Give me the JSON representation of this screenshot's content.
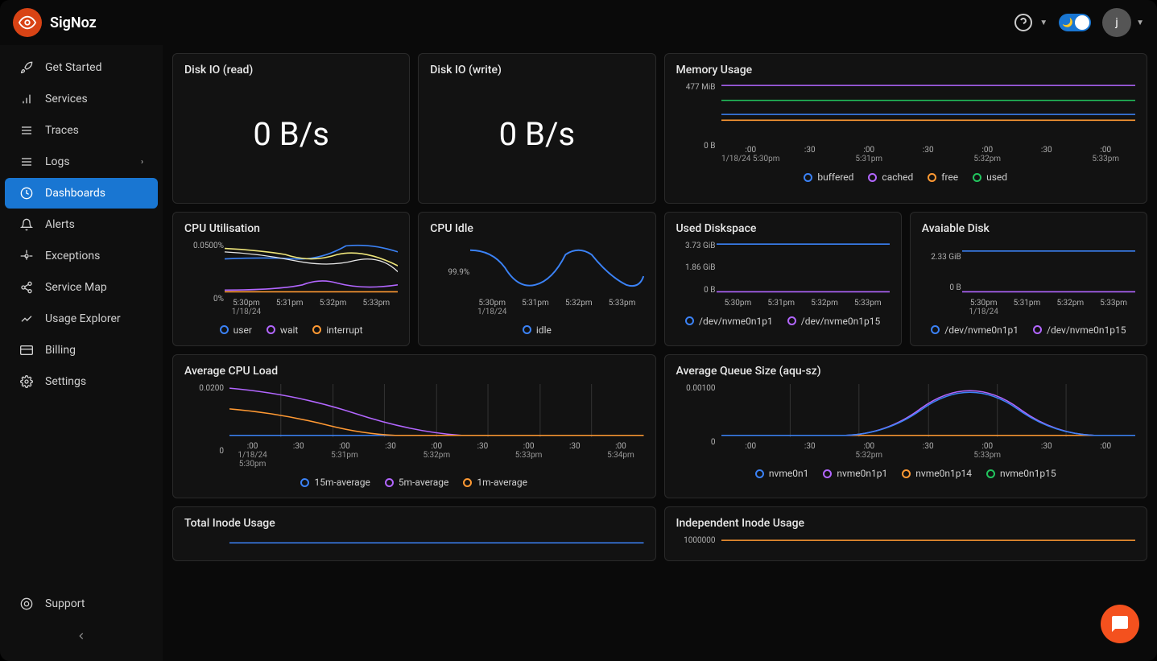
{
  "brand": "SigNoz",
  "avatar_initial": "j",
  "sidebar": {
    "items": [
      {
        "label": "Get Started",
        "icon": "rocket"
      },
      {
        "label": "Services",
        "icon": "bar-chart"
      },
      {
        "label": "Traces",
        "icon": "menu"
      },
      {
        "label": "Logs",
        "icon": "list",
        "expandable": true
      },
      {
        "label": "Dashboards",
        "icon": "gauge",
        "active": true
      },
      {
        "label": "Alerts",
        "icon": "bell"
      },
      {
        "label": "Exceptions",
        "icon": "cog"
      },
      {
        "label": "Service Map",
        "icon": "share"
      },
      {
        "label": "Usage Explorer",
        "icon": "line-chart"
      },
      {
        "label": "Billing",
        "icon": "card"
      },
      {
        "label": "Settings",
        "icon": "gear"
      }
    ],
    "support_label": "Support"
  },
  "panels": {
    "disk_read": {
      "title": "Disk IO (read)",
      "value": "0 B/s"
    },
    "disk_write": {
      "title": "Disk IO (write)",
      "value": "0 B/s"
    },
    "memory": {
      "title": "Memory Usage",
      "type": "line",
      "ylabels": [
        "477 MiB",
        "0 B"
      ],
      "xticks": [
        {
          "t": ":00",
          "sub": "1/18/24 5:30pm"
        },
        {
          "t": ":30"
        },
        {
          "t": ":00",
          "sub": "5:31pm"
        },
        {
          "t": ":30"
        },
        {
          "t": ":00",
          "sub": "5:32pm"
        },
        {
          "t": ":30"
        },
        {
          "t": ":00",
          "sub": "5:33pm"
        }
      ],
      "series": [
        {
          "color": "#3b82f6",
          "y": 0.55,
          "name": "buffered"
        },
        {
          "color": "#b266ff",
          "y": 0.05,
          "name": "cached"
        },
        {
          "color": "#ff9933",
          "y": 0.64,
          "name": "free"
        },
        {
          "color": "#22c55e",
          "y": 0.3,
          "name": "used"
        }
      ],
      "legend": [
        {
          "label": "buffered",
          "color": "#3b82f6"
        },
        {
          "label": "cached",
          "color": "#b266ff"
        },
        {
          "label": "free",
          "color": "#ff9933"
        },
        {
          "label": "used",
          "color": "#22c55e"
        }
      ]
    },
    "cpu_util": {
      "title": "CPU Utilisation",
      "ylabels": [
        "0.0500%",
        "0%"
      ],
      "xticks": [
        {
          "t": "5:30pm",
          "sub": "1/18/24"
        },
        {
          "t": "5:31pm"
        },
        {
          "t": "5:32pm"
        },
        {
          "t": "5:33pm"
        }
      ],
      "legend": [
        {
          "label": "user",
          "color": "#3b82f6"
        },
        {
          "label": "wait",
          "color": "#b266ff"
        },
        {
          "label": "interrupt",
          "color": "#ff9933"
        }
      ]
    },
    "cpu_idle": {
      "title": "CPU Idle",
      "ylabels": [
        "99.9%",
        ""
      ],
      "xticks": [
        {
          "t": "5:30pm",
          "sub": "1/18/24"
        },
        {
          "t": "5:31pm"
        },
        {
          "t": "5:32pm"
        },
        {
          "t": "5:33pm"
        }
      ],
      "legend": [
        {
          "label": "idle",
          "color": "#3b82f6"
        }
      ]
    },
    "used_disk": {
      "title": "Used Diskspace",
      "ylabels": [
        "3.73 GiB",
        "1.86 GiB",
        "0 B"
      ],
      "xticks": [
        {
          "t": "5:30pm"
        },
        {
          "t": "5:31pm"
        },
        {
          "t": "5:32pm"
        },
        {
          "t": "5:33pm"
        }
      ],
      "series": [
        {
          "color": "#3b82f6",
          "y": 0.05
        },
        {
          "color": "#b266ff",
          "y": 0.97
        }
      ],
      "legend": [
        {
          "label": "/dev/nvme0n1p1",
          "color": "#3b82f6"
        },
        {
          "label": "/dev/nvme0n1p15",
          "color": "#b266ff"
        }
      ]
    },
    "avail_disk": {
      "title": "Avaiable Disk",
      "ylabels": [
        "2.33 GiB",
        "0 B"
      ],
      "xticks": [
        {
          "t": "5:30pm",
          "sub": "1/18/24"
        },
        {
          "t": "5:31pm"
        },
        {
          "t": "5:32pm"
        },
        {
          "t": "5:33pm"
        }
      ],
      "series": [
        {
          "color": "#3b82f6",
          "y": 0.18
        },
        {
          "color": "#b266ff",
          "y": 0.97
        }
      ],
      "legend": [
        {
          "label": "/dev/nvme0n1p1",
          "color": "#3b82f6"
        },
        {
          "label": "/dev/nvme0n1p15",
          "color": "#b266ff"
        }
      ]
    },
    "cpu_load": {
      "title": "Average CPU Load",
      "ylabels": [
        "0.0200",
        "0"
      ],
      "xticks": [
        {
          "t": ":00",
          "sub": "1/18/24 5:30pm"
        },
        {
          "t": ":30"
        },
        {
          "t": ":00",
          "sub": "5:31pm"
        },
        {
          "t": ":30"
        },
        {
          "t": ":00",
          "sub": "5:32pm"
        },
        {
          "t": ":30"
        },
        {
          "t": ":00",
          "sub": "5:33pm"
        },
        {
          "t": ":30"
        },
        {
          "t": ":00",
          "sub": "5:34pm"
        }
      ],
      "legend": [
        {
          "label": "15m-average",
          "color": "#3b82f6"
        },
        {
          "label": "5m-average",
          "color": "#b266ff"
        },
        {
          "label": "1m-average",
          "color": "#ff9933"
        }
      ]
    },
    "queue_size": {
      "title": "Average Queue Size (aqu-sz)",
      "ylabels": [
        "0.00100",
        "0"
      ],
      "xticks": [
        {
          "t": ":00"
        },
        {
          "t": ":30"
        },
        {
          "t": ":00",
          "sub": "5:32pm"
        },
        {
          "t": ":30"
        },
        {
          "t": ":00",
          "sub": "5:33pm"
        },
        {
          "t": ":30"
        },
        {
          "t": ":00"
        }
      ],
      "legend": [
        {
          "label": "nvme0n1",
          "color": "#3b82f6"
        },
        {
          "label": "nvme0n1p1",
          "color": "#b266ff"
        },
        {
          "label": "nvme0n1p14",
          "color": "#ff9933"
        },
        {
          "label": "nvme0n1p15",
          "color": "#22c55e"
        }
      ]
    },
    "inode_total": {
      "title": "Total Inode Usage"
    },
    "inode_indep": {
      "title": "Independent Inode Usage",
      "ylabels": [
        "1000000"
      ]
    }
  },
  "colors": {
    "grid": "#333",
    "axis_text": "#b0b0b0",
    "panel_bg": "#121212",
    "panel_border": "#2a2a2a"
  }
}
